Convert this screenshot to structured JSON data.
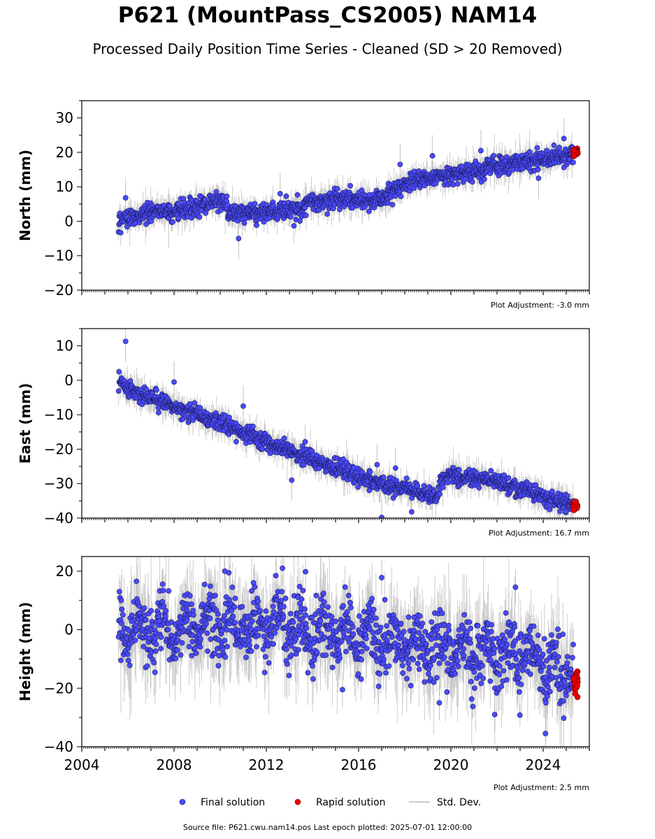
{
  "title": "P621 (MountPass_CS2005) NAM14",
  "subtitle": "Processed Daily Position Time Series - Cleaned (SD > 20 Removed)",
  "footer": "Source file: P621.cwu.nam14.pos  Last epoch plotted: 2025-07-01 12:00:00",
  "legend": {
    "items": [
      {
        "label": "Final solution",
        "kind": "marker",
        "color": "#4a4aff"
      },
      {
        "label": "Rapid solution",
        "kind": "marker",
        "color": "#e60000"
      },
      {
        "label": "Std. Dev.",
        "kind": "line",
        "color": "#cccccc"
      }
    ],
    "placement": "bottom-center"
  },
  "colors": {
    "final_fill": "#4a4aff",
    "final_edge": "#1a1a55",
    "rapid_fill": "#e60000",
    "rapid_edge": "#800000",
    "stddev": "#9a9a9a"
  },
  "chart_data": [
    {
      "type": "scatter",
      "ylabel": "North (mm)",
      "ylim": [
        -20,
        35
      ],
      "yticks": [
        -20,
        -10,
        0,
        10,
        20,
        30
      ],
      "ytick_labels": [
        "−20",
        "−10",
        "0",
        "10",
        "20",
        "30"
      ],
      "xlim": [
        2004,
        2026
      ],
      "show_xticklabels": false,
      "adjustment": "Plot Adjustment: -3.0 mm",
      "grid": false,
      "final_series": {
        "name": "Final solution",
        "trend": [
          [
            2005.6,
            0.5
          ],
          [
            2006.5,
            2.0
          ],
          [
            2008.0,
            3.0
          ],
          [
            2009.5,
            5.0
          ],
          [
            2010.2,
            6.0
          ],
          [
            2010.35,
            2.5
          ],
          [
            2012.0,
            2.5
          ],
          [
            2013.5,
            4.0
          ],
          [
            2015.0,
            6.5
          ],
          [
            2016.5,
            6.0
          ],
          [
            2017.3,
            8.0
          ],
          [
            2017.6,
            9.5
          ],
          [
            2018.5,
            12.0
          ],
          [
            2019.5,
            13.0
          ],
          [
            2021.0,
            14.5
          ],
          [
            2023.0,
            17.0
          ],
          [
            2025.3,
            19.5
          ]
        ],
        "scatter_sd": 1.3,
        "error_sd": 1.8
      },
      "rapid_series": {
        "name": "Rapid solution",
        "x_range": [
          2025.3,
          2025.5
        ],
        "y_center": 20.0,
        "scatter_sd": 0.6
      },
      "outliers": [
        [
          2010.8,
          -5.0
        ],
        [
          2005.9,
          6.8
        ],
        [
          2012.6,
          8.0
        ],
        [
          2021.3,
          20.5
        ],
        [
          2019.2,
          19.0
        ],
        [
          2023.8,
          12.5
        ],
        [
          2024.9,
          24.0
        ],
        [
          2017.8,
          16.5
        ]
      ]
    },
    {
      "type": "scatter",
      "ylabel": "East (mm)",
      "ylim": [
        -40,
        15
      ],
      "yticks": [
        -40,
        -30,
        -20,
        -10,
        0,
        10
      ],
      "ytick_labels": [
        "−40",
        "−30",
        "−20",
        "−10",
        "0",
        "10"
      ],
      "xlim": [
        2004,
        2026
      ],
      "show_xticklabels": false,
      "adjustment": "Plot Adjustment: 16.7 mm",
      "grid": false,
      "final_series": {
        "name": "Final solution",
        "trend": [
          [
            2005.6,
            -0.5
          ],
          [
            2006.0,
            -2.5
          ],
          [
            2007.0,
            -5.0
          ],
          [
            2008.0,
            -7.5
          ],
          [
            2009.0,
            -10.0
          ],
          [
            2010.0,
            -12.5
          ],
          [
            2011.0,
            -15.5
          ],
          [
            2012.0,
            -18.0
          ],
          [
            2013.0,
            -20.5
          ],
          [
            2014.0,
            -23.0
          ],
          [
            2015.0,
            -25.5
          ],
          [
            2016.0,
            -28.0
          ],
          [
            2017.0,
            -30.0
          ],
          [
            2017.6,
            -31.0
          ],
          [
            2018.5,
            -32.0
          ],
          [
            2019.4,
            -34.5
          ],
          [
            2019.55,
            -29.0
          ],
          [
            2020.0,
            -27.5
          ],
          [
            2021.0,
            -28.5
          ],
          [
            2022.0,
            -29.5
          ],
          [
            2023.0,
            -31.5
          ],
          [
            2024.0,
            -34.0
          ],
          [
            2025.3,
            -36.0
          ]
        ],
        "scatter_sd": 1.2,
        "error_sd": 1.8
      },
      "rapid_series": {
        "name": "Rapid solution",
        "x_range": [
          2025.3,
          2025.5
        ],
        "y_center": -36.5,
        "scatter_sd": 0.7
      },
      "outliers": [
        [
          2005.9,
          11.3
        ],
        [
          2013.1,
          -29.0
        ],
        [
          2017.0,
          -39.8
        ],
        [
          2018.3,
          -38.2
        ],
        [
          2016.8,
          -24.5
        ],
        [
          2017.6,
          -25.5
        ],
        [
          2008.0,
          -0.5
        ],
        [
          2011.0,
          -7.5
        ]
      ]
    },
    {
      "type": "scatter",
      "ylabel": "Height (mm)",
      "ylim": [
        -40,
        25
      ],
      "yticks": [
        -40,
        -20,
        0,
        20
      ],
      "ytick_labels": [
        "−40",
        "−20",
        "0",
        "20"
      ],
      "xlim": [
        2004,
        2026
      ],
      "xticks": [
        2004,
        2008,
        2012,
        2016,
        2020,
        2024
      ],
      "xtick_labels": [
        "2004",
        "2008",
        "2012",
        "2016",
        "2020",
        "2024"
      ],
      "show_xticklabels": true,
      "adjustment": "Plot Adjustment: 2.5 mm",
      "grid": false,
      "final_series": {
        "name": "Final solution",
        "trend": [
          [
            2005.6,
            0.0
          ],
          [
            2008.0,
            0.5
          ],
          [
            2012.0,
            1.0
          ],
          [
            2015.0,
            -1.0
          ],
          [
            2017.0,
            -3.0
          ],
          [
            2019.0,
            -5.0
          ],
          [
            2021.0,
            -6.5
          ],
          [
            2023.0,
            -9.0
          ],
          [
            2024.5,
            -12.5
          ],
          [
            2025.3,
            -15.0
          ]
        ],
        "scatter_sd": 5.2,
        "error_sd": 6.5,
        "seasonal_amplitude": 4.0
      },
      "rapid_series": {
        "name": "Rapid solution",
        "x_range": [
          2025.3,
          2025.5
        ],
        "y_center": -18.0,
        "scatter_sd": 2.5
      },
      "outliers": [
        [
          2024.1,
          -35.5
        ],
        [
          2021.9,
          -29.0
        ],
        [
          2012.7,
          21.0
        ],
        [
          2010.2,
          20.0
        ],
        [
          2013.7,
          19.8
        ],
        [
          2017.0,
          17.8
        ],
        [
          2022.8,
          14.5
        ],
        [
          2015.3,
          -20.5
        ],
        [
          2019.5,
          -25.0
        ]
      ]
    }
  ]
}
